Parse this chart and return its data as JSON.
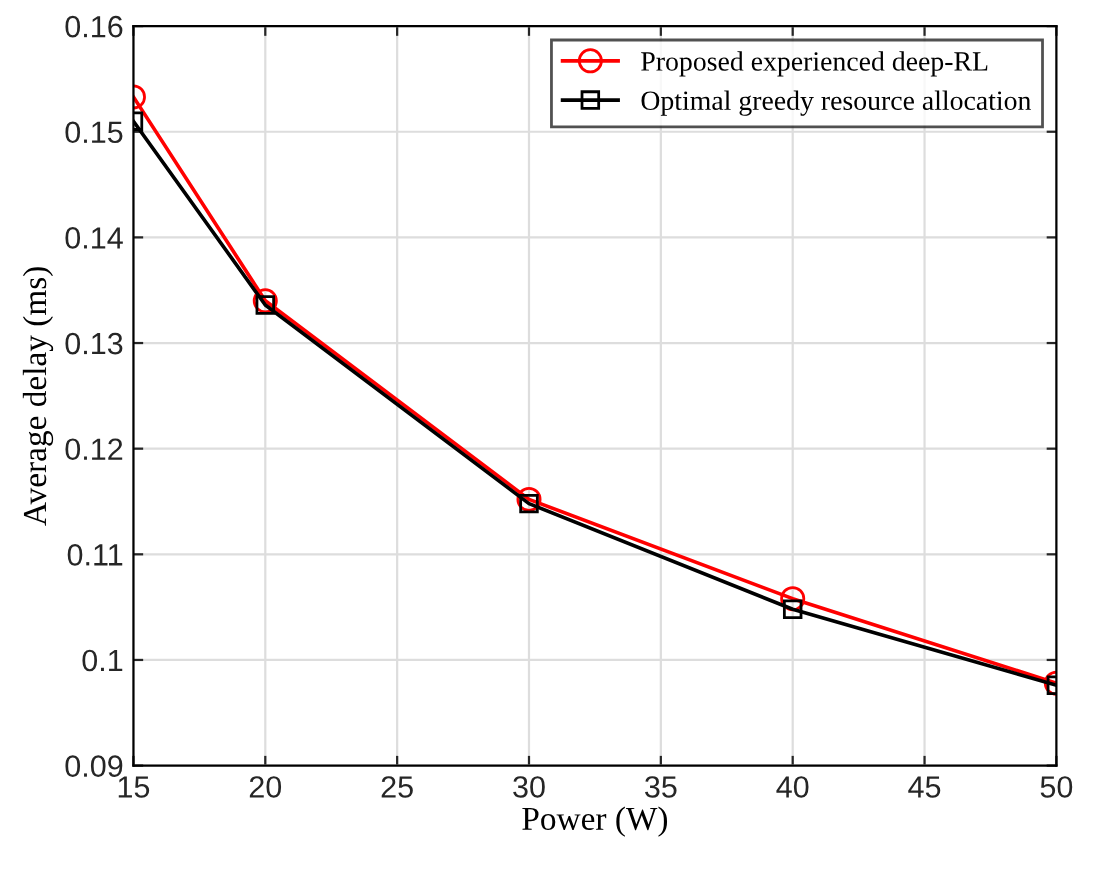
{
  "chart_data": {
    "type": "line",
    "xlabel": "Power (W)",
    "ylabel": "Average delay (ms)",
    "x": [
      15,
      20,
      30,
      40,
      50
    ],
    "series": [
      {
        "name": "Proposed experienced deep-RL",
        "color": "#ff0000",
        "marker": "circle",
        "values": [
          0.1533,
          0.134,
          0.1152,
          0.1058,
          0.0978
        ]
      },
      {
        "name": "Optimal greedy resource allocation",
        "color": "#000000",
        "marker": "square",
        "values": [
          0.151,
          0.1336,
          0.1148,
          0.1048,
          0.0976
        ]
      }
    ],
    "xlim": [
      15,
      50
    ],
    "ylim": [
      0.09,
      0.16
    ],
    "xticks": [
      15,
      20,
      25,
      30,
      35,
      40,
      45,
      50
    ],
    "yticks": [
      0.09,
      {
        "value": 0.1,
        "label": "0.1"
      },
      0.11,
      0.12,
      0.13,
      0.14,
      0.15,
      0.16
    ],
    "grid": true,
    "legend": "top right",
    "line_style": "solid"
  }
}
